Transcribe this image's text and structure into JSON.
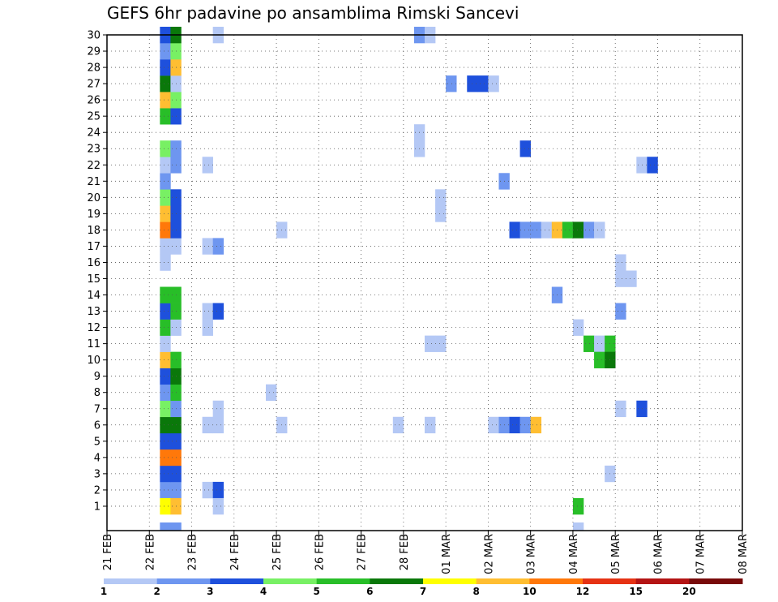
{
  "chart_data": {
    "type": "heatmap",
    "title": "GEFS 6hr padavine po ansamblima Rimski Sancevi",
    "xlabel": "",
    "ylabel": "",
    "x_tick_labels": [
      "21 FEB",
      "22 FEB",
      "23 FEB",
      "24 FEB",
      "25 FEB",
      "26 FEB",
      "27 FEB",
      "28 FEB",
      "01 MAR",
      "02 MAR",
      "03 MAR",
      "04 MAR",
      "05 MAR",
      "06 MAR",
      "07 MAR",
      "08 MAR"
    ],
    "y_ticks": [
      1,
      2,
      3,
      4,
      5,
      6,
      7,
      8,
      9,
      10,
      11,
      12,
      13,
      14,
      15,
      16,
      17,
      18,
      19,
      20,
      21,
      22,
      23,
      24,
      25,
      26,
      27,
      28,
      29,
      30
    ],
    "grid": true,
    "steps_per_day": 4,
    "legend": {
      "placement": "bottom",
      "labels": [
        "1",
        "2",
        "3",
        "4",
        "5",
        "6",
        "7",
        "8",
        "10",
        "12",
        "15",
        "20"
      ],
      "colors": [
        "#b4c8f5",
        "#6e96f0",
        "#1e50dc",
        "#78f064",
        "#28be28",
        "#0a780a",
        "#ffff00",
        "#ffbe32",
        "#ff780a",
        "#e63214",
        "#b41414",
        "#780a0a"
      ]
    },
    "cells": [
      [
        0,
        5,
        2,
        2
      ],
      [
        0,
        6,
        2,
        2
      ],
      [
        0,
        5,
        3,
        3
      ],
      [
        0,
        6,
        3,
        3
      ],
      [
        0,
        5,
        4,
        9
      ],
      [
        0,
        6,
        4,
        9
      ],
      [
        0,
        5,
        5,
        3
      ],
      [
        0,
        6,
        5,
        3
      ],
      [
        0,
        5,
        6,
        6
      ],
      [
        0,
        6,
        6,
        6
      ],
      [
        0,
        5,
        7,
        4
      ],
      [
        0,
        6,
        7,
        2
      ],
      [
        0,
        5,
        8,
        2
      ],
      [
        0,
        6,
        8,
        5
      ],
      [
        0,
        5,
        9,
        3
      ],
      [
        0,
        6,
        9,
        6
      ],
      [
        0,
        5,
        10,
        8
      ],
      [
        0,
        6,
        10,
        5
      ],
      [
        0,
        5,
        11,
        1
      ],
      [
        0,
        5,
        12,
        5
      ],
      [
        0,
        6,
        12,
        1
      ],
      [
        0,
        5,
        13,
        3
      ],
      [
        0,
        6,
        13,
        5
      ],
      [
        0,
        5,
        14,
        5
      ],
      [
        0,
        6,
        14,
        5
      ],
      [
        0,
        5,
        16,
        1
      ],
      [
        0,
        5,
        17,
        1
      ],
      [
        0,
        6,
        17,
        1
      ],
      [
        0,
        5,
        18,
        9
      ],
      [
        0,
        6,
        18,
        3
      ],
      [
        0,
        5,
        19,
        8
      ],
      [
        0,
        6,
        19,
        3
      ],
      [
        0,
        5,
        20,
        4
      ],
      [
        0,
        6,
        20,
        3
      ],
      [
        0,
        5,
        21,
        2
      ],
      [
        0,
        5,
        22,
        1
      ],
      [
        0,
        6,
        22,
        2
      ],
      [
        0,
        5,
        23,
        4
      ],
      [
        0,
        6,
        23,
        2
      ],
      [
        0,
        5,
        25,
        5
      ],
      [
        0,
        6,
        25,
        3
      ],
      [
        0,
        5,
        26,
        8
      ],
      [
        0,
        6,
        26,
        4
      ],
      [
        0,
        5,
        27,
        6
      ],
      [
        0,
        6,
        27,
        1
      ],
      [
        0,
        5,
        28,
        3
      ],
      [
        0,
        6,
        28,
        8
      ],
      [
        0,
        5,
        29,
        2
      ],
      [
        0,
        6,
        29,
        4
      ],
      [
        0,
        5,
        30,
        3
      ],
      [
        0,
        6,
        30,
        6
      ],
      [
        0,
        5,
        1,
        7
      ],
      [
        0,
        6,
        1,
        8
      ],
      [
        0,
        5,
        0,
        2
      ],
      [
        0,
        6,
        0,
        2
      ],
      [
        0,
        9,
        2,
        1
      ],
      [
        0,
        10,
        2,
        3
      ],
      [
        0,
        10,
        1,
        1
      ],
      [
        0,
        9,
        6,
        1
      ],
      [
        0,
        10,
        6,
        1
      ],
      [
        0,
        10,
        7,
        1
      ],
      [
        0,
        9,
        12,
        1
      ],
      [
        0,
        9,
        13,
        1
      ],
      [
        0,
        10,
        13,
        3
      ],
      [
        0,
        9,
        17,
        1
      ],
      [
        0,
        10,
        17,
        2
      ],
      [
        0,
        9,
        22,
        1
      ],
      [
        0,
        10,
        30,
        1
      ],
      [
        0,
        16,
        6,
        1
      ],
      [
        0,
        15,
        8,
        1
      ],
      [
        0,
        16,
        18,
        1
      ],
      [
        0,
        27,
        6,
        1
      ],
      [
        0,
        30,
        6,
        1
      ],
      [
        0,
        30,
        11,
        1
      ],
      [
        0,
        31,
        11,
        1
      ],
      [
        0,
        31,
        19,
        1
      ],
      [
        0,
        31,
        20,
        1
      ],
      [
        0,
        29,
        23,
        1
      ],
      [
        0,
        29,
        24,
        1
      ],
      [
        0,
        29,
        30,
        2
      ],
      [
        0,
        30,
        30,
        1
      ],
      [
        0,
        32,
        27,
        2
      ],
      [
        0,
        34,
        27,
        3
      ],
      [
        0,
        35,
        27,
        3
      ],
      [
        0,
        36,
        27,
        1
      ],
      [
        0,
        37,
        21,
        2
      ],
      [
        0,
        36,
        6,
        1
      ],
      [
        0,
        37,
        6,
        2
      ],
      [
        0,
        38,
        6,
        3
      ],
      [
        0,
        39,
        6,
        2
      ],
      [
        0,
        40,
        6,
        8
      ],
      [
        0,
        38,
        18,
        3
      ],
      [
        0,
        39,
        18,
        2
      ],
      [
        0,
        40,
        18,
        2
      ],
      [
        0,
        41,
        18,
        1
      ],
      [
        0,
        42,
        18,
        8
      ],
      [
        0,
        43,
        18,
        5
      ],
      [
        0,
        44,
        18,
        6
      ],
      [
        0,
        45,
        18,
        2
      ],
      [
        0,
        46,
        18,
        1
      ],
      [
        0,
        39,
        23,
        3
      ],
      [
        0,
        42,
        14,
        2
      ],
      [
        0,
        44,
        0,
        1
      ],
      [
        0,
        44,
        1,
        5
      ],
      [
        0,
        44,
        12,
        1
      ],
      [
        0,
        45,
        11,
        5
      ],
      [
        0,
        46,
        11,
        1
      ],
      [
        0,
        47,
        11,
        5
      ],
      [
        0,
        46,
        10,
        5
      ],
      [
        0,
        47,
        10,
        6
      ],
      [
        0,
        47,
        3,
        1
      ],
      [
        0,
        48,
        7,
        1
      ],
      [
        0,
        50,
        7,
        3
      ],
      [
        0,
        48,
        13,
        2
      ],
      [
        0,
        48,
        15,
        1
      ],
      [
        0,
        49,
        15,
        1
      ],
      [
        0,
        48,
        16,
        1
      ],
      [
        0,
        50,
        22,
        1
      ],
      [
        0,
        51,
        22,
        3
      ]
    ],
    "cells_format": "[row_unused, x_step_index_from_21_FEB_00Z, member_y, color_class_1_to_12]"
  }
}
